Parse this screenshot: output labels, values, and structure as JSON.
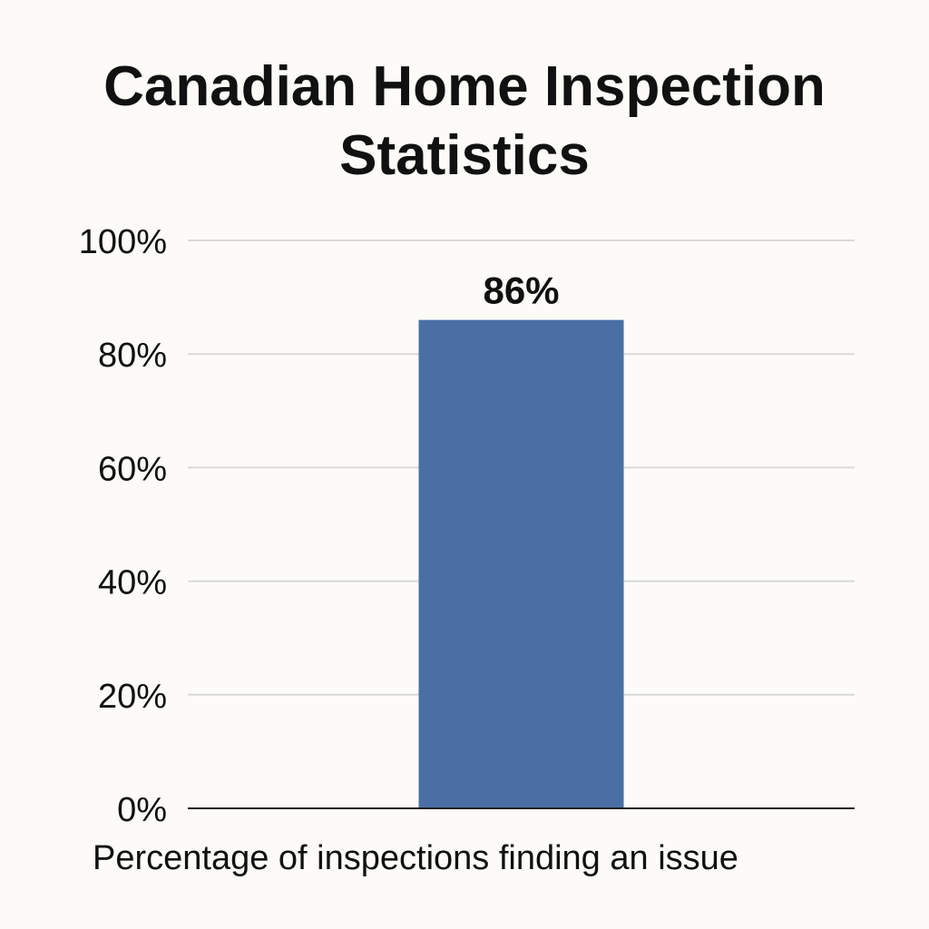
{
  "chart_data": {
    "type": "bar",
    "title": "Canadian Home Inspection Statistics",
    "xlabel": "Percentage of inspections finding an issue",
    "ylabel": "",
    "categories": [
      ""
    ],
    "values": [
      86
    ],
    "value_labels": [
      "86%"
    ],
    "ylim": [
      0,
      100
    ],
    "y_ticks": [
      0,
      20,
      40,
      60,
      80,
      100
    ],
    "y_tick_labels": [
      "0%",
      "20%",
      "40%",
      "60%",
      "80%",
      "100%"
    ],
    "grid": true,
    "legend": "none",
    "colors": {
      "bar": "#4a6fa5",
      "grid": "#d9d9d9",
      "axis": "#222222",
      "background": "#fcfbf7",
      "text": "#111111"
    }
  }
}
